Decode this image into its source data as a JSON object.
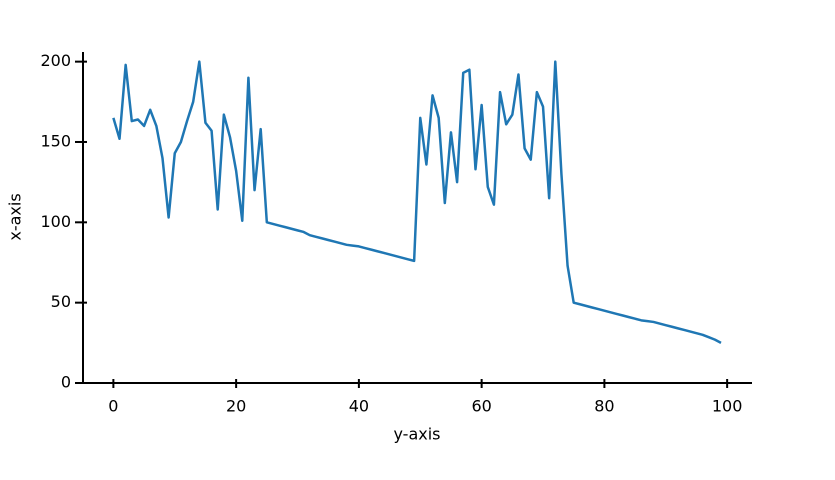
{
  "chart_data": {
    "type": "line",
    "x_label": "y-axis",
    "y_label": "x-axis",
    "x": [
      0,
      1,
      2,
      3,
      4,
      5,
      6,
      7,
      8,
      9,
      10,
      11,
      12,
      13,
      14,
      15,
      16,
      17,
      18,
      19,
      20,
      21,
      22,
      23,
      24,
      25,
      26,
      27,
      28,
      29,
      30,
      31,
      32,
      33,
      34,
      35,
      36,
      37,
      38,
      39,
      40,
      41,
      42,
      43,
      44,
      45,
      46,
      47,
      48,
      49,
      50,
      51,
      52,
      53,
      54,
      55,
      56,
      57,
      58,
      59,
      60,
      61,
      62,
      63,
      64,
      65,
      66,
      67,
      68,
      69,
      70,
      71,
      72,
      73,
      74,
      75,
      76,
      77,
      78,
      79,
      80,
      81,
      82,
      83,
      84,
      85,
      86,
      87,
      88,
      89,
      90,
      91,
      92,
      93,
      94,
      95,
      96,
      97,
      98,
      99
    ],
    "series": [
      {
        "color": "#1f77b4",
        "values": [
          165,
          152,
          198,
          163,
          164,
          160,
          170,
          160,
          140,
          103,
          143,
          150,
          163,
          175,
          200,
          162,
          157,
          108,
          167,
          153,
          132,
          101,
          190,
          120,
          158,
          100,
          99,
          98,
          97,
          96,
          95,
          94,
          92,
          91,
          90,
          89,
          88,
          87,
          86,
          85.5,
          85,
          84,
          83,
          82,
          81,
          80,
          79,
          78,
          77,
          76,
          165,
          136,
          179,
          165,
          112,
          156,
          125,
          193,
          195,
          133,
          173,
          122,
          111,
          181,
          161,
          167,
          192,
          146,
          139,
          181,
          172,
          115,
          200,
          130,
          73,
          50,
          49,
          48,
          47,
          46,
          45,
          44,
          43,
          42,
          41,
          40,
          39,
          38.5,
          38,
          37,
          36,
          35,
          34,
          33,
          32,
          31,
          30,
          28.5,
          27,
          25
        ]
      }
    ],
    "xlim": [
      -4.95,
      104.05
    ],
    "ylim": [
      0,
      206
    ],
    "xticks": [
      0,
      20,
      40,
      60,
      80,
      100
    ],
    "yticks": [
      0,
      50,
      100,
      150,
      200
    ]
  }
}
